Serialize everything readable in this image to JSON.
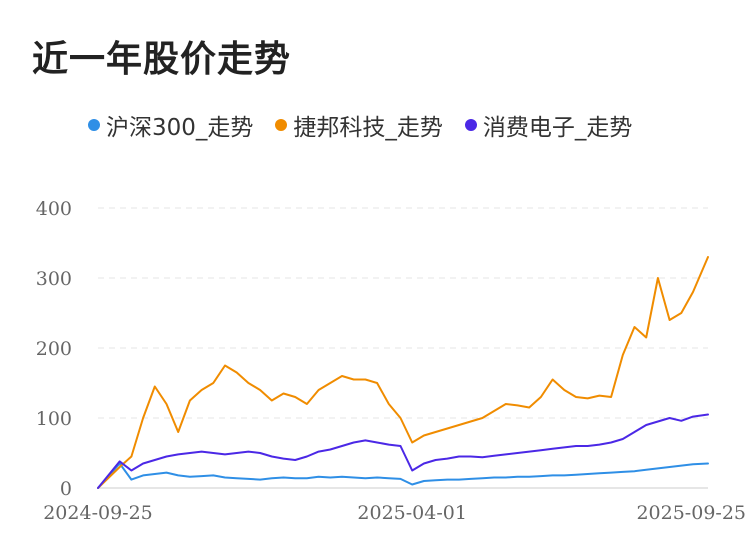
{
  "title": "近一年股价走势",
  "colors": {
    "grid": "#e4e4e4",
    "axis": "#cccccc",
    "tick_text": "#666666"
  },
  "chart_data": {
    "type": "line",
    "title": "近一年股价走势",
    "xlabel": "",
    "ylabel": "",
    "ylim": [
      0,
      400
    ],
    "y_ticks": [
      0,
      100,
      200,
      300,
      400
    ],
    "x_ticks": [
      "2024-09-25",
      "2025-04-01",
      "2025-09-25"
    ],
    "x_range": [
      "2024-09-25",
      "2025-09-25"
    ],
    "grid": true,
    "legend": "top-left",
    "x": [
      "2024-09-25",
      "2024-10-08",
      "2024-10-15",
      "2024-10-22",
      "2024-10-29",
      "2024-11-05",
      "2024-11-12",
      "2024-11-19",
      "2024-11-26",
      "2024-12-03",
      "2024-12-10",
      "2024-12-17",
      "2024-12-24",
      "2024-12-31",
      "2025-01-07",
      "2025-01-14",
      "2025-01-21",
      "2025-01-28",
      "2025-02-04",
      "2025-02-11",
      "2025-02-18",
      "2025-02-25",
      "2025-03-04",
      "2025-03-11",
      "2025-03-18",
      "2025-03-25",
      "2025-04-01",
      "2025-04-08",
      "2025-04-15",
      "2025-04-22",
      "2025-04-29",
      "2025-05-06",
      "2025-05-13",
      "2025-05-20",
      "2025-05-27",
      "2025-06-03",
      "2025-06-10",
      "2025-06-17",
      "2025-06-24",
      "2025-07-01",
      "2025-07-08",
      "2025-07-15",
      "2025-07-22",
      "2025-07-29",
      "2025-08-05",
      "2025-08-12",
      "2025-08-19",
      "2025-08-26",
      "2025-09-02",
      "2025-09-09",
      "2025-09-16",
      "2025-09-25"
    ],
    "series": [
      {
        "name": "沪深300_走势",
        "color": "#2f8fe6",
        "values": [
          0,
          35,
          12,
          18,
          20,
          22,
          18,
          16,
          17,
          18,
          15,
          14,
          13,
          12,
          14,
          15,
          14,
          14,
          16,
          15,
          16,
          15,
          14,
          15,
          14,
          13,
          5,
          10,
          11,
          12,
          12,
          13,
          14,
          15,
          15,
          16,
          16,
          17,
          18,
          18,
          19,
          20,
          21,
          22,
          23,
          24,
          26,
          28,
          30,
          32,
          34,
          35
        ]
      },
      {
        "name": "捷邦科技_走势",
        "color": "#f08c00",
        "values": [
          0,
          30,
          45,
          100,
          145,
          120,
          80,
          125,
          140,
          150,
          175,
          165,
          150,
          140,
          125,
          135,
          130,
          120,
          140,
          150,
          160,
          155,
          155,
          150,
          120,
          100,
          65,
          75,
          80,
          85,
          90,
          95,
          100,
          110,
          120,
          118,
          115,
          130,
          155,
          140,
          130,
          128,
          132,
          130,
          190,
          230,
          215,
          300,
          240,
          250,
          280,
          330
        ]
      },
      {
        "name": "消费电子_走势",
        "color": "#4b28e6",
        "values": [
          0,
          38,
          25,
          35,
          40,
          45,
          48,
          50,
          52,
          50,
          48,
          50,
          52,
          50,
          45,
          42,
          40,
          45,
          52,
          55,
          60,
          65,
          68,
          65,
          62,
          60,
          25,
          35,
          40,
          42,
          45,
          45,
          44,
          46,
          48,
          50,
          52,
          54,
          56,
          58,
          60,
          60,
          62,
          65,
          70,
          80,
          90,
          95,
          100,
          96,
          102,
          105
        ]
      }
    ]
  }
}
